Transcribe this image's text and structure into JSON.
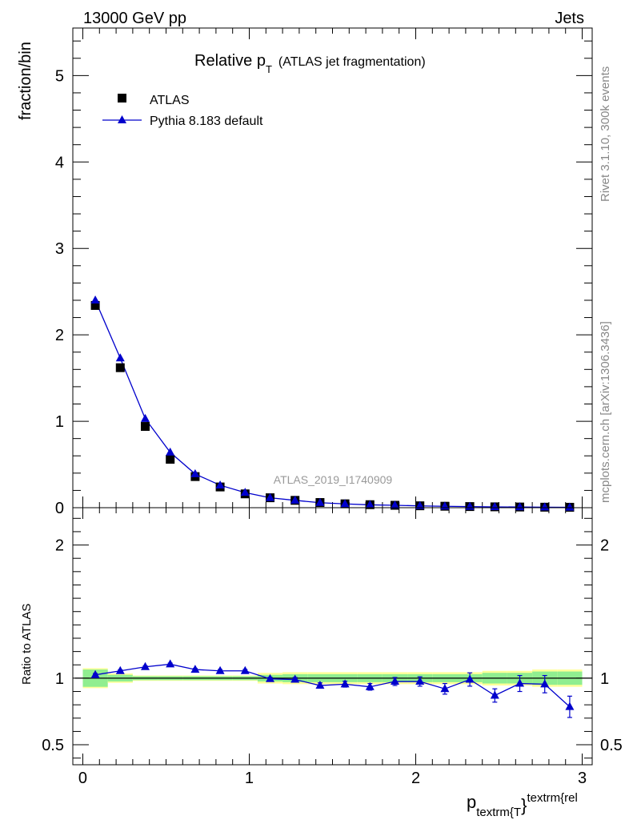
{
  "header": {
    "energy_label": "13000 GeV pp",
    "category_label": "Jets"
  },
  "side_text": {
    "rivet": "Rivet 3.1.10,  300k events",
    "mcplots": "mcplots.cern.ch [arXiv:1306.3436]"
  },
  "watermark": "ATLAS_2019_I1740909",
  "colors": {
    "data": "#000000",
    "mc": "#0000cc",
    "band_inner": "#90ee90",
    "band_outer": "#ffff99"
  },
  "chart_data": [
    {
      "type": "scatter",
      "panel": "main",
      "title": "Relative p",
      "title_sub": "T",
      "title_suffix": "(ATLAS jet fragmentation)",
      "ylabel": "fraction/bin",
      "xlim": [
        -0.06,
        3.06
      ],
      "ylim": [
        0,
        5.55
      ],
      "yticks": [
        0,
        1,
        2,
        3,
        4,
        5
      ],
      "ytick_labels": [
        "0",
        "1",
        "2",
        "3",
        "4",
        "5"
      ],
      "legend": [
        {
          "label": "ATLAS",
          "marker": "square"
        },
        {
          "label": "Pythia 8.183 default",
          "marker": "triangle-line"
        }
      ],
      "x": [
        0.075,
        0.225,
        0.375,
        0.525,
        0.675,
        0.825,
        0.975,
        1.125,
        1.275,
        1.425,
        1.575,
        1.725,
        1.875,
        2.025,
        2.175,
        2.325,
        2.475,
        2.625,
        2.775,
        2.925
      ],
      "series": [
        {
          "name": "ATLAS",
          "values": [
            2.34,
            1.62,
            0.94,
            0.56,
            0.36,
            0.24,
            0.16,
            0.115,
            0.085,
            0.06,
            0.045,
            0.035,
            0.028,
            0.022,
            0.017,
            0.013,
            0.01,
            0.008,
            0.006,
            0.005
          ]
        },
        {
          "name": "Pythia 8.183 default",
          "values": [
            2.4,
            1.73,
            1.03,
            0.64,
            0.39,
            0.26,
            0.175,
            0.115,
            0.085,
            0.058,
            0.044,
            0.033,
            0.028,
            0.021,
            0.016,
            0.013,
            0.009,
            0.008,
            0.006,
            0.004
          ]
        }
      ]
    },
    {
      "type": "line",
      "panel": "ratio",
      "ylabel": "Ratio to ATLAS",
      "xlabel": "p",
      "xlabel_sub": "textrm{T",
      "xlabel_sup": "textrm{rel",
      "xlabel_brace": "}",
      "xlim": [
        -0.06,
        3.06
      ],
      "ylim": [
        0.35,
        2.28
      ],
      "yticks": [
        0.5,
        1,
        2
      ],
      "ytick_labels": [
        "0.5",
        "1",
        "2"
      ],
      "xticks": [
        0,
        1,
        2,
        3
      ],
      "xtick_labels": [
        "0",
        "1",
        "2",
        "3"
      ],
      "x": [
        0.075,
        0.225,
        0.375,
        0.525,
        0.675,
        0.825,
        0.975,
        1.125,
        1.275,
        1.425,
        1.575,
        1.725,
        1.875,
        2.025,
        2.175,
        2.325,
        2.475,
        2.625,
        2.775,
        2.925
      ],
      "series": [
        {
          "name": "Pythia 8.183 default",
          "values": [
            1.025,
            1.055,
            1.085,
            1.105,
            1.065,
            1.055,
            1.055,
            0.995,
            0.99,
            0.945,
            0.955,
            0.935,
            0.975,
            0.975,
            0.92,
            0.99,
            0.87,
            0.96,
            0.955,
            0.785
          ],
          "errors": [
            0.01,
            0.008,
            0.008,
            0.008,
            0.008,
            0.01,
            0.01,
            0.012,
            0.015,
            0.02,
            0.022,
            0.025,
            0.03,
            0.035,
            0.04,
            0.05,
            0.05,
            0.06,
            0.065,
            0.08
          ]
        }
      ],
      "band_inner": [
        0.065,
        0.025,
        0.015,
        0.015,
        0.015,
        0.015,
        0.015,
        0.025,
        0.03,
        0.03,
        0.03,
        0.03,
        0.03,
        0.03,
        0.03,
        0.03,
        0.04,
        0.04,
        0.05,
        0.05
      ],
      "band_outer": [
        0.075,
        0.035,
        0.02,
        0.02,
        0.02,
        0.02,
        0.02,
        0.04,
        0.045,
        0.045,
        0.045,
        0.045,
        0.045,
        0.045,
        0.045,
        0.045,
        0.055,
        0.055,
        0.065,
        0.065
      ]
    }
  ]
}
